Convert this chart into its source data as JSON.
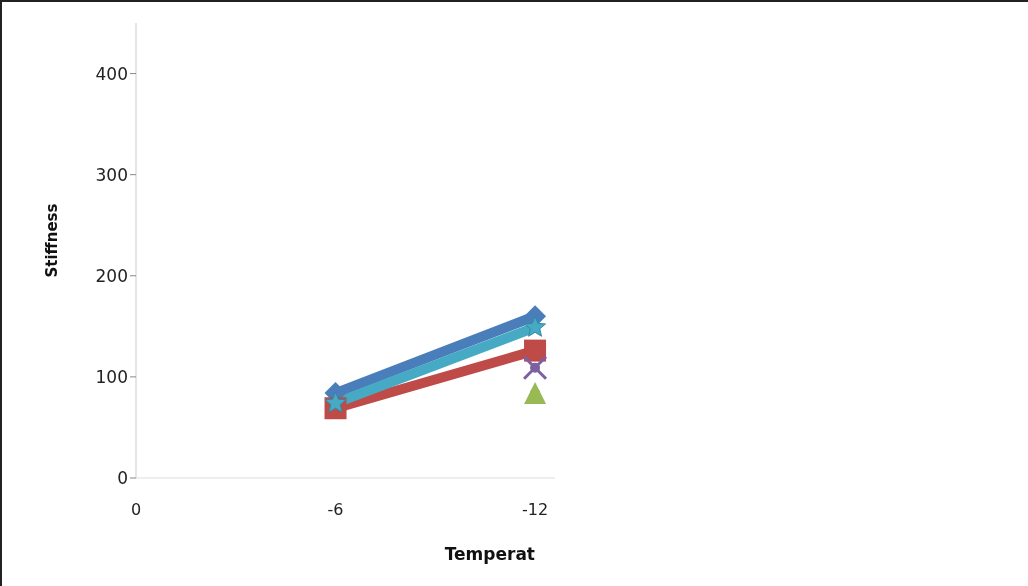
{
  "chart_data": {
    "type": "line",
    "xlabel": "Temperat",
    "ylabel": "Stiffness",
    "categories": [
      "0",
      "-6",
      "-12"
    ],
    "ylim": [
      0,
      450
    ],
    "yticks": [
      0,
      100,
      200,
      300,
      400
    ],
    "grid": false,
    "legend": false,
    "line_style": "solid",
    "series": [
      {
        "color": "#4a7ebb",
        "marker": "diamond",
        "values": [
          null,
          84,
          160
        ]
      },
      {
        "color": "#be4b48",
        "marker": "square",
        "values": [
          null,
          69,
          126
        ]
      },
      {
        "color": "#98b954",
        "marker": "triangle",
        "values": [
          null,
          null,
          84
        ]
      },
      {
        "color": "#7d60a0",
        "marker": "cross",
        "values": [
          null,
          null,
          109
        ]
      },
      {
        "color": "#46aac5",
        "marker": "star",
        "values": [
          null,
          74,
          149
        ]
      }
    ]
  }
}
